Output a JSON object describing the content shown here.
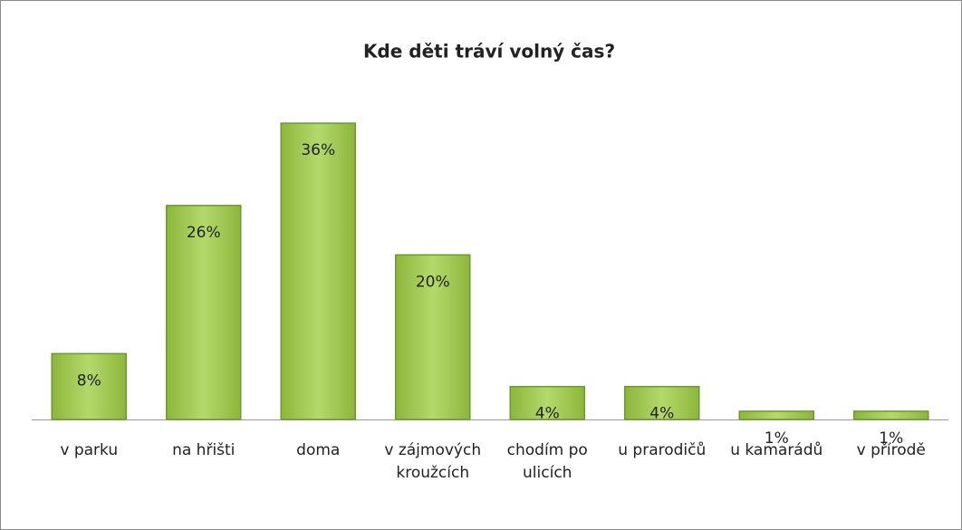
{
  "chart_data": {
    "type": "bar",
    "title": "Kde děti tráví volný čas?",
    "categories": [
      "v parku",
      "na hřišti",
      "doma",
      "v zájmových kroužcích",
      "chodím po ulicích",
      "u prarodičů",
      "u kamarádů",
      "v přírodě"
    ],
    "values": [
      8,
      26,
      36,
      20,
      4,
      4,
      1,
      1
    ],
    "value_labels": [
      "8%",
      "26%",
      "36%",
      "20%",
      "4%",
      "4%",
      "1%",
      "1%"
    ],
    "color": "#9bc545"
  }
}
